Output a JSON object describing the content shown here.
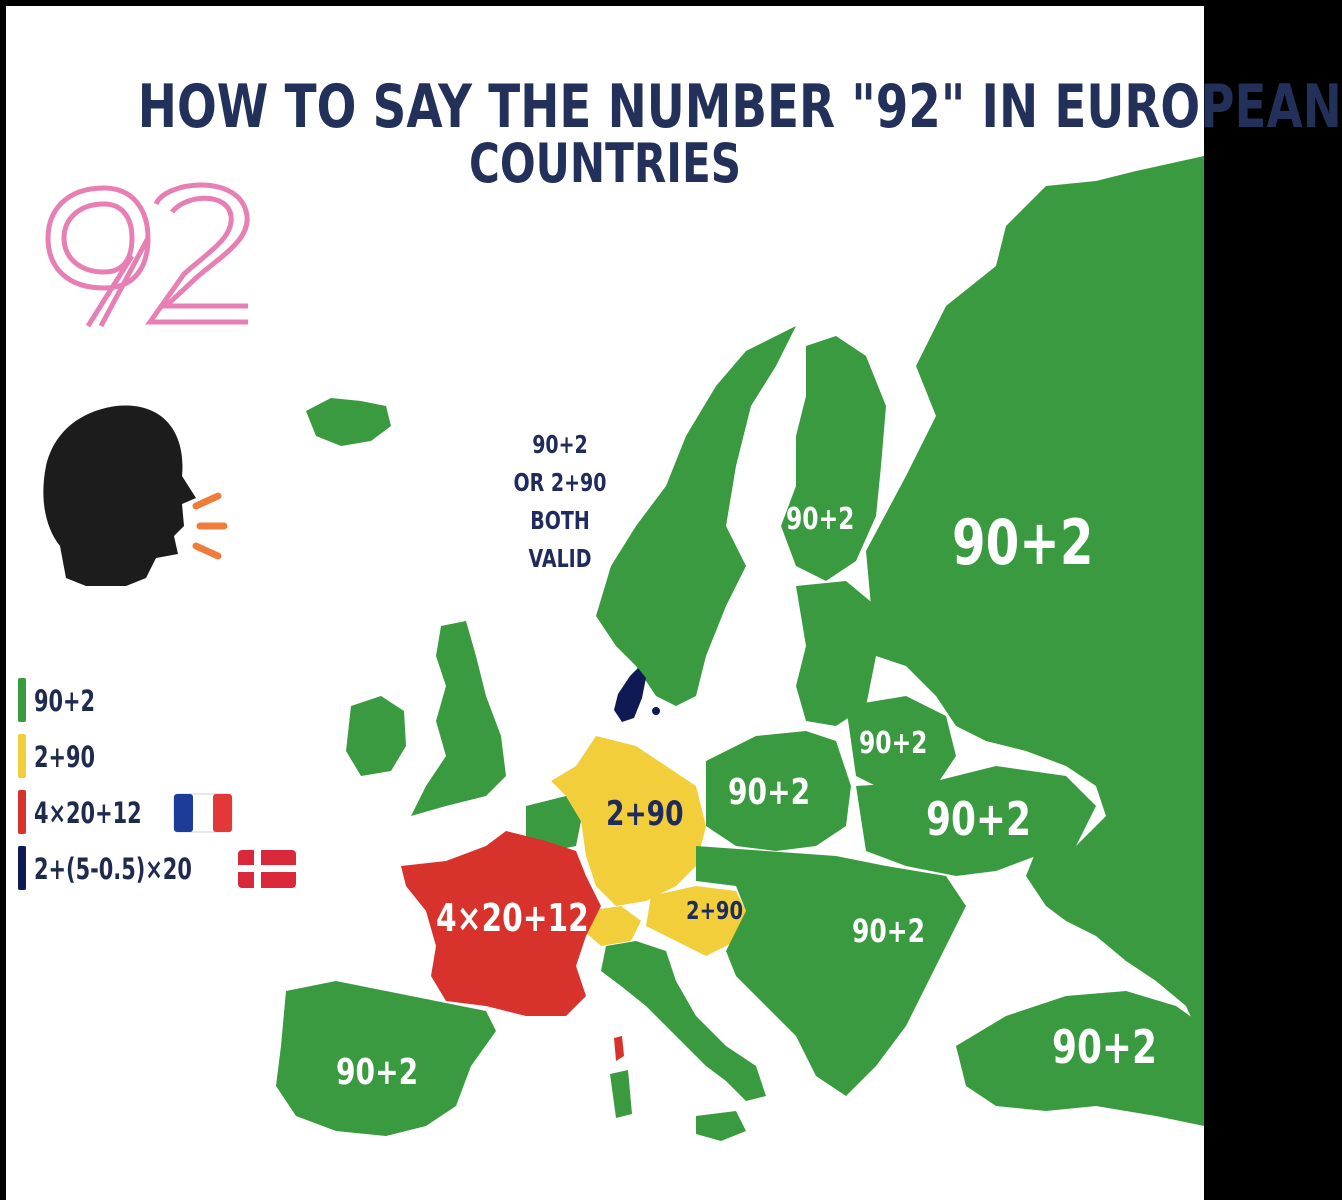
{
  "title": {
    "line1": "HOW TO SAY THE NUMBER \"92\" IN EUROPEAN",
    "line2": "COUNTRIES"
  },
  "big_number": "92",
  "speaker_icon": "speaking-head-icon",
  "colors": {
    "green": "#3a9a40",
    "yellow": "#f2cf3a",
    "red": "#d8322c",
    "navy": "#0f1a55",
    "title": "#22305a",
    "number_pink": "#e77fb5"
  },
  "legend": [
    {
      "label": "90+2",
      "color": "#3a9a40"
    },
    {
      "label": "2+90",
      "color": "#f2cf3a"
    },
    {
      "label": "4×20+12",
      "color": "#d8322c",
      "flag": "france-flag-icon"
    },
    {
      "label": "2+(5-0.5)×20",
      "color": "#0f1a55",
      "flag": "denmark-flag-icon"
    }
  ],
  "scandinavia_note": [
    "90+2",
    "OR 2+90",
    "BOTH",
    "VALID"
  ],
  "map_labels": {
    "russia": "90+2",
    "finland": "90+2",
    "belarus": "90+2",
    "ukraine": "90+2",
    "poland": "90+2",
    "germany": "2+90",
    "austria": "2+90",
    "france": "4×20+12",
    "iberia": "90+2",
    "balkans": "90+2",
    "turkey": "90+2"
  }
}
